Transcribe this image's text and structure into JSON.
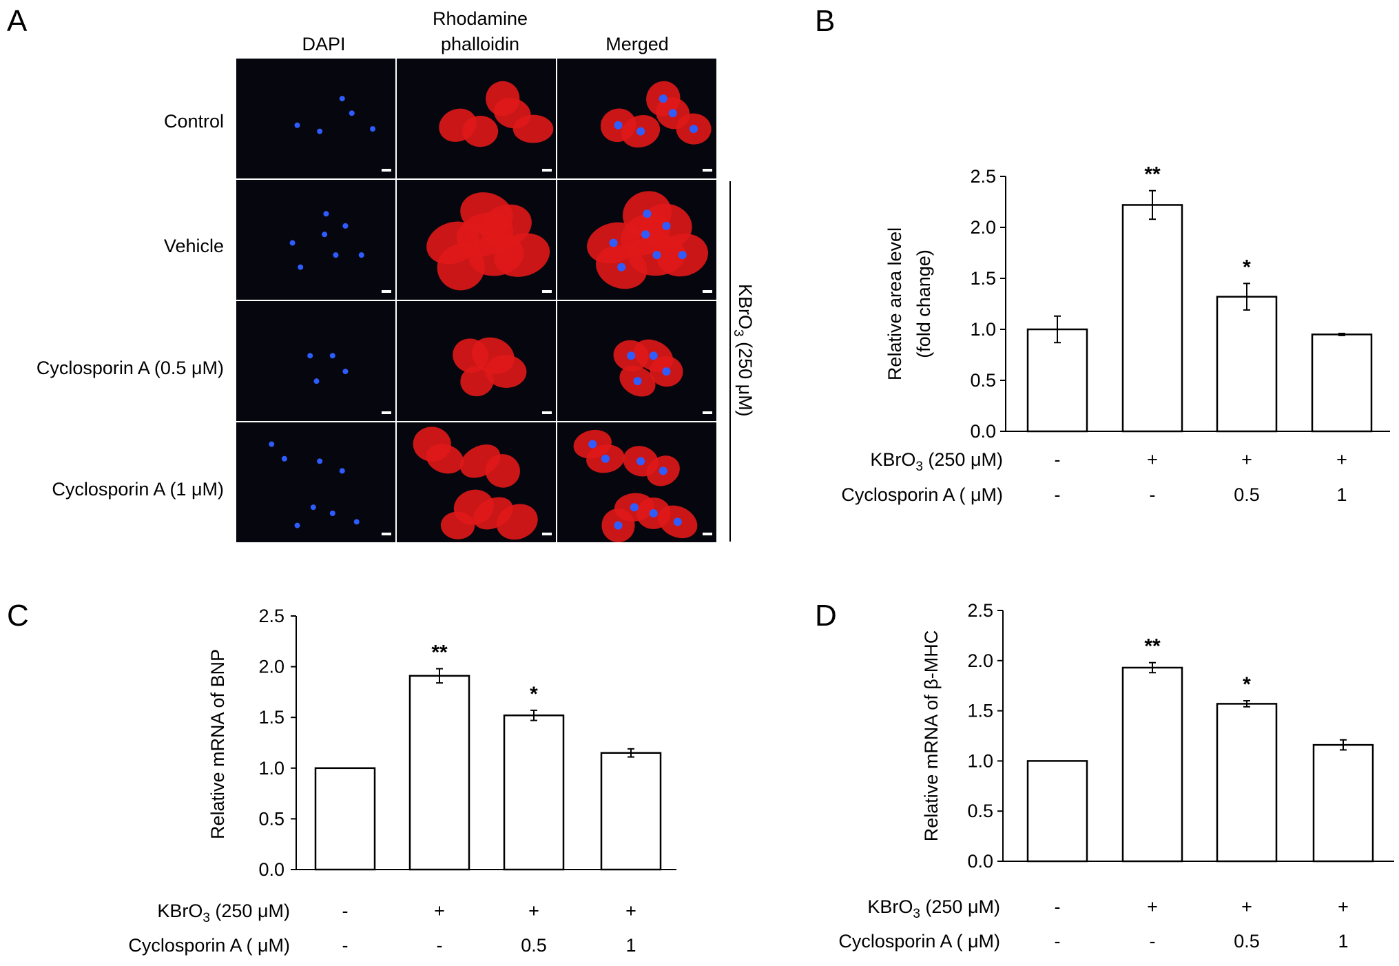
{
  "panel_letters": [
    "A",
    "B",
    "C",
    "D"
  ],
  "panel_a": {
    "columns": [
      "DAPI",
      "Rhodamine",
      "phalloidin",
      "Merged"
    ],
    "rows": [
      "Control",
      "Vehicle",
      "Cyclosporin A (0.5 μM)",
      "Cyclosporin A (1 μM)"
    ],
    "side_label": {
      "main": "KBrO",
      "sub": "3",
      "rest": " (250 μM)"
    },
    "colors": {
      "dapi": "#2f5cff",
      "phalloidin": "#e01818",
      "background": "#06070e"
    }
  },
  "row_labels": {
    "kbro3": {
      "main": "KBrO",
      "sub": "3",
      "rest": " (250 μM)"
    },
    "cyclosporin": "Cyclosporin A ( μM)"
  },
  "chart_data": [
    {
      "panel": "B",
      "type": "bar",
      "categories": [
        "1",
        "2",
        "3",
        "4"
      ],
      "values": [
        1.0,
        2.22,
        1.32,
        0.95
      ],
      "errors": [
        0.13,
        0.14,
        0.13,
        0.01
      ],
      "significance": [
        "",
        "**",
        "*",
        ""
      ],
      "ylabel": [
        "Relative area level",
        "(fold change)"
      ],
      "ylim": [
        0,
        2.5
      ],
      "yticks": [
        "0.0",
        "0.5",
        "1.0",
        "1.5",
        "2.0",
        "2.5"
      ],
      "kbro3": [
        "-",
        "+",
        "+",
        "+"
      ],
      "cyclosporin": [
        "-",
        "-",
        "0.5",
        "1"
      ]
    },
    {
      "panel": "C",
      "type": "bar",
      "categories": [
        "1",
        "2",
        "3",
        "4"
      ],
      "values": [
        1.0,
        1.91,
        1.52,
        1.15
      ],
      "errors": [
        0.0,
        0.07,
        0.05,
        0.04
      ],
      "significance": [
        "",
        "**",
        "*",
        ""
      ],
      "ylabel": [
        "Relative mRNA of BNP"
      ],
      "ylim": [
        0,
        2.5
      ],
      "yticks": [
        "0.0",
        "0.5",
        "1.0",
        "1.5",
        "2.0",
        "2.5"
      ],
      "kbro3": [
        "-",
        "+",
        "+",
        "+"
      ],
      "cyclosporin": [
        "-",
        "-",
        "0.5",
        "1"
      ]
    },
    {
      "panel": "D",
      "type": "bar",
      "categories": [
        "1",
        "2",
        "3",
        "4"
      ],
      "values": [
        1.0,
        1.93,
        1.57,
        1.16
      ],
      "errors": [
        0.0,
        0.05,
        0.03,
        0.05
      ],
      "significance": [
        "",
        "**",
        "*",
        ""
      ],
      "ylabel": [
        "Relative mRNA of β-MHC"
      ],
      "ylim": [
        0,
        2.5
      ],
      "yticks": [
        "0.0",
        "0.5",
        "1.0",
        "1.5",
        "2.0",
        "2.5"
      ],
      "kbro3": [
        "-",
        "+",
        "+",
        "+"
      ],
      "cyclosporin": [
        "-",
        "-",
        "0.5",
        "1"
      ]
    }
  ]
}
